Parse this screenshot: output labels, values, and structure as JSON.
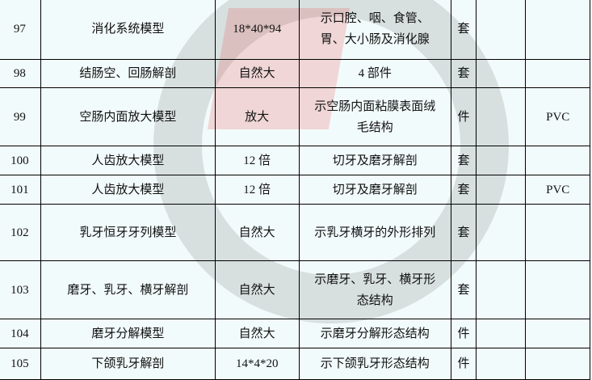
{
  "rows": [
    {
      "no": "97",
      "name": "消化系统模型",
      "size": "18*40*94",
      "desc": "示口腔、咽、食管、胃、大小肠及消化腺",
      "unit": "套",
      "qty": "",
      "note": ""
    },
    {
      "no": "98",
      "name": "结肠空、回肠解剖",
      "size": "自然大",
      "desc": "4 部件",
      "unit": "套",
      "qty": "",
      "note": ""
    },
    {
      "no": "99",
      "name": "空肠内面放大模型",
      "size": "放大",
      "desc": "示空肠内面粘膜表面绒毛结构",
      "unit": "件",
      "qty": "",
      "note": "PVC"
    },
    {
      "no": "100",
      "name": "人齿放大模型",
      "size": "12 倍",
      "desc": "切牙及磨牙解剖",
      "unit": "套",
      "qty": "",
      "note": ""
    },
    {
      "no": "101",
      "name": "人齿放大模型",
      "size": "12 倍",
      "desc": "切牙及磨牙解剖",
      "unit": "套",
      "qty": "",
      "note": "PVC"
    },
    {
      "no": "102",
      "name": "乳牙恒牙牙列模型",
      "size": "自然大",
      "desc": "示乳牙横牙的外形排列",
      "unit": "套",
      "qty": "",
      "note": ""
    },
    {
      "no": "103",
      "name": "磨牙、乳牙、横牙解剖",
      "size": "自然大",
      "desc": "示磨牙、乳牙、横牙形态结构",
      "unit": "套",
      "qty": "",
      "note": ""
    },
    {
      "no": "104",
      "name": "磨牙分解模型",
      "size": "自然大",
      "desc": "示磨牙分解形态结构",
      "unit": "件",
      "qty": "",
      "note": ""
    },
    {
      "no": "105",
      "name": "下颌乳牙解剖",
      "size": "14*4*20",
      "desc": "示下颌乳牙形态结构",
      "unit": "件",
      "qty": "",
      "note": ""
    }
  ]
}
